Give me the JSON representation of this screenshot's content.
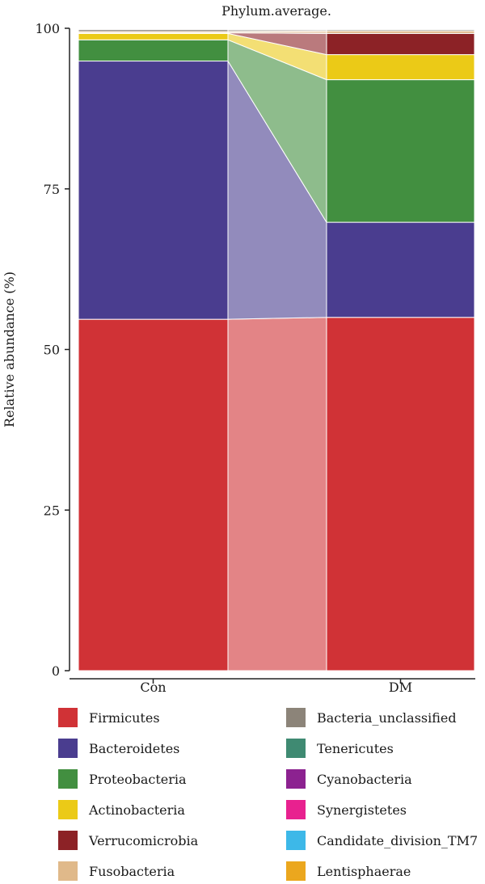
{
  "chart_data": {
    "type": "bar",
    "stacked": true,
    "title": "Phylum.average.",
    "xlabel": "",
    "ylabel": "Relative abundance (%)",
    "ylim": [
      0,
      100
    ],
    "yticks": [
      "0",
      "25",
      "50",
      "75",
      "100"
    ],
    "categories": [
      "Con",
      "DM"
    ],
    "series": [
      {
        "name": "Firmicutes",
        "color": "#d03236",
        "values": [
          54.7,
          55.0
        ]
      },
      {
        "name": "Bacteroidetes",
        "color": "#4a3d8f",
        "values": [
          40.2,
          14.8
        ]
      },
      {
        "name": "Proteobacteria",
        "color": "#428f40",
        "values": [
          3.3,
          22.2
        ]
      },
      {
        "name": "Actinobacteria",
        "color": "#ebca17",
        "values": [
          1.0,
          3.9
        ]
      },
      {
        "name": "Verrucomicrobia",
        "color": "#8c2226",
        "values": [
          0.1,
          3.3
        ]
      },
      {
        "name": "Fusobacteria",
        "color": "#e0b98a",
        "values": [
          0.2,
          0.4
        ]
      },
      {
        "name": "Bacteria_unclassified",
        "color": "#8c8479",
        "values": [
          0.3,
          0.2
        ]
      },
      {
        "name": "Tenericutes",
        "color": "#3f8a72",
        "values": [
          0.05,
          0.05
        ]
      },
      {
        "name": "Cyanobacteria",
        "color": "#8c2290",
        "values": [
          0.05,
          0.03
        ]
      },
      {
        "name": "Synergistetes",
        "color": "#e8218f",
        "values": [
          0.03,
          0.02
        ]
      },
      {
        "name": "Candidate_division_TM7",
        "color": "#3db8e8",
        "values": [
          0.05,
          0.05
        ]
      },
      {
        "name": "Lentisphaerae",
        "color": "#eba71e",
        "values": [
          0.02,
          0.05
        ]
      }
    ],
    "legend_position": "bottom"
  }
}
